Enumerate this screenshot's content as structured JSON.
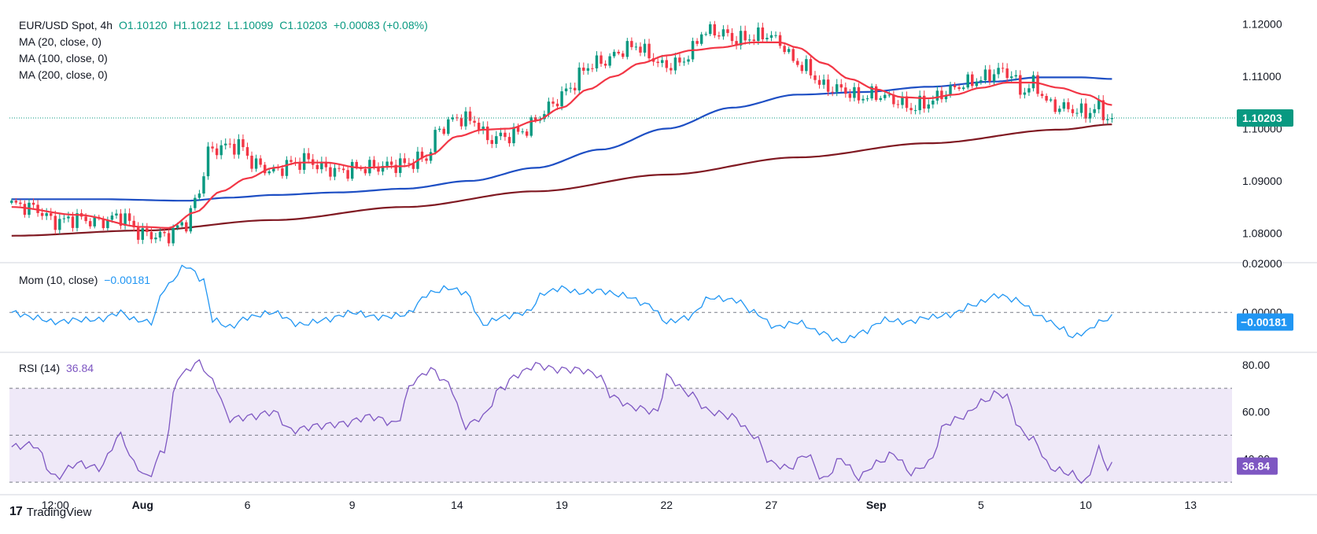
{
  "legend": {
    "symbol": "EUR/USD Spot, 4h",
    "open": "O1.10120",
    "high": "H1.10212",
    "low": "L1.10099",
    "close": "C1.10203",
    "change": "+0.00083 (+0.08%)",
    "ma20": "MA (20, close, 0)",
    "ma100": "MA (100, close, 0)",
    "ma200": "MA (200, close, 0)",
    "mom_label": "Mom (10, close)",
    "mom_value": "−0.00181",
    "rsi_label": "RSI (14)",
    "rsi_value": "36.84"
  },
  "branding": {
    "name": "TradingView"
  },
  "chart_data": {
    "type": "candlestick",
    "timeframe": "4h",
    "x_ticks": [
      {
        "i": 10,
        "label": "12:00"
      },
      {
        "i": 30,
        "label": "Aug"
      },
      {
        "i": 54,
        "label": "6"
      },
      {
        "i": 78,
        "label": "9"
      },
      {
        "i": 102,
        "label": "14"
      },
      {
        "i": 126,
        "label": "19"
      },
      {
        "i": 150,
        "label": "22"
      },
      {
        "i": 174,
        "label": "27"
      },
      {
        "i": 198,
        "label": "Sep"
      },
      {
        "i": 222,
        "label": "5"
      },
      {
        "i": 246,
        "label": "10"
      },
      {
        "i": 270,
        "label": "13"
      }
    ],
    "bar_count": 280,
    "price_panel": {
      "y_ticks": [
        "1.12000",
        "1.11000",
        "1.10000",
        "1.09000",
        "1.08000"
      ],
      "ylim": [
        1.0745,
        1.1225
      ],
      "last_price_label": "1.10203",
      "last_price": 1.10203,
      "anchors_close": [
        [
          0,
          1.0855
        ],
        [
          5,
          1.0848
        ],
        [
          10,
          1.0822
        ],
        [
          15,
          1.0828
        ],
        [
          20,
          1.0821
        ],
        [
          25,
          1.0832
        ],
        [
          30,
          1.0798
        ],
        [
          35,
          1.0794
        ],
        [
          40,
          1.082
        ],
        [
          43,
          1.088
        ],
        [
          45,
          1.0955
        ],
        [
          48,
          1.0965
        ],
        [
          52,
          1.0968
        ],
        [
          56,
          1.093
        ],
        [
          60,
          1.0918
        ],
        [
          64,
          1.0933
        ],
        [
          68,
          1.094
        ],
        [
          71,
          1.0925
        ],
        [
          75,
          1.0918
        ],
        [
          80,
          1.0925
        ],
        [
          85,
          1.0928
        ],
        [
          90,
          1.0932
        ],
        [
          95,
          1.0945
        ],
        [
          98,
          1.1
        ],
        [
          102,
          1.102
        ],
        [
          106,
          1.1015
        ],
        [
          109,
          1.098
        ],
        [
          113,
          1.0985
        ],
        [
          118,
          1.0998
        ],
        [
          121,
          1.1025
        ],
        [
          125,
          1.1055
        ],
        [
          128,
          1.108
        ],
        [
          132,
          1.112
        ],
        [
          136,
          1.113
        ],
        [
          140,
          1.115
        ],
        [
          143,
          1.116
        ],
        [
          146,
          1.114
        ],
        [
          149,
          1.112
        ],
        [
          153,
          1.1125
        ],
        [
          156,
          1.115
        ],
        [
          158,
          1.1185
        ],
        [
          162,
          1.1185
        ],
        [
          166,
          1.117
        ],
        [
          170,
          1.1175
        ],
        [
          173,
          1.118
        ],
        [
          176,
          1.1165
        ],
        [
          179,
          1.113
        ],
        [
          182,
          1.1115
        ],
        [
          186,
          1.108
        ],
        [
          190,
          1.1075
        ],
        [
          194,
          1.106
        ],
        [
          198,
          1.1065
        ],
        [
          202,
          1.1055
        ],
        [
          206,
          1.104
        ],
        [
          210,
          1.105
        ],
        [
          214,
          1.107
        ],
        [
          218,
          1.1085
        ],
        [
          222,
          1.1095
        ],
        [
          226,
          1.111
        ],
        [
          229,
          1.1105
        ],
        [
          231,
          1.107
        ],
        [
          234,
          1.1085
        ],
        [
          238,
          1.1045
        ],
        [
          242,
          1.1038
        ],
        [
          246,
          1.103
        ],
        [
          249,
          1.104
        ],
        [
          251,
          1.102
        ],
        [
          252,
          1.102
        ]
      ],
      "ma20_anchors": [
        [
          0,
          1.085
        ],
        [
          15,
          1.0835
        ],
        [
          30,
          1.0812
        ],
        [
          36,
          1.081
        ],
        [
          42,
          1.084
        ],
        [
          48,
          1.088
        ],
        [
          54,
          1.0905
        ],
        [
          60,
          1.0925
        ],
        [
          66,
          1.0935
        ],
        [
          72,
          1.0935
        ],
        [
          80,
          1.0925
        ],
        [
          90,
          1.0928
        ],
        [
          96,
          1.095
        ],
        [
          102,
          1.0985
        ],
        [
          108,
          1.0998
        ],
        [
          114,
          1.1
        ],
        [
          120,
          1.1015
        ],
        [
          126,
          1.104
        ],
        [
          132,
          1.1075
        ],
        [
          138,
          1.11
        ],
        [
          144,
          1.1125
        ],
        [
          150,
          1.114
        ],
        [
          156,
          1.115
        ],
        [
          162,
          1.1155
        ],
        [
          170,
          1.1165
        ],
        [
          176,
          1.1165
        ],
        [
          180,
          1.1155
        ],
        [
          186,
          1.1125
        ],
        [
          192,
          1.1095
        ],
        [
          198,
          1.1075
        ],
        [
          204,
          1.106
        ],
        [
          210,
          1.1058
        ],
        [
          216,
          1.1065
        ],
        [
          222,
          1.1078
        ],
        [
          228,
          1.1088
        ],
        [
          234,
          1.1088
        ],
        [
          240,
          1.1078
        ],
        [
          246,
          1.1065
        ],
        [
          252,
          1.1045
        ]
      ],
      "ma100_anchors": [
        [
          0,
          1.0865
        ],
        [
          20,
          1.0865
        ],
        [
          40,
          1.0862
        ],
        [
          50,
          1.0868
        ],
        [
          60,
          1.0873
        ],
        [
          75,
          1.0878
        ],
        [
          90,
          1.0885
        ],
        [
          105,
          1.09
        ],
        [
          120,
          1.0925
        ],
        [
          135,
          1.096
        ],
        [
          150,
          1.1
        ],
        [
          165,
          1.104
        ],
        [
          180,
          1.1065
        ],
        [
          195,
          1.107
        ],
        [
          210,
          1.108
        ],
        [
          225,
          1.109
        ],
        [
          235,
          1.1098
        ],
        [
          245,
          1.1098
        ],
        [
          252,
          1.1095
        ]
      ],
      "ma200_anchors": [
        [
          0,
          1.0795
        ],
        [
          30,
          1.0805
        ],
        [
          60,
          1.0825
        ],
        [
          90,
          1.085
        ],
        [
          120,
          1.088
        ],
        [
          150,
          1.0912
        ],
        [
          180,
          1.0945
        ],
        [
          210,
          1.0972
        ],
        [
          240,
          1.0998
        ],
        [
          252,
          1.1008
        ]
      ]
    },
    "momentum_panel": {
      "name": "Mom (10, close)",
      "y_ticks": [
        "0.02000"
      ],
      "zero_label": "0.00000",
      "last_value_label": "−0.00181",
      "ylim": [
        -0.016,
        0.02
      ],
      "anchors": [
        [
          0,
          0.0
        ],
        [
          5,
          -0.002
        ],
        [
          10,
          -0.004
        ],
        [
          15,
          -0.003
        ],
        [
          20,
          -0.003
        ],
        [
          25,
          0.0
        ],
        [
          28,
          -0.003
        ],
        [
          32,
          -0.004
        ],
        [
          35,
          0.01
        ],
        [
          40,
          0.019
        ],
        [
          44,
          0.013
        ],
        [
          46,
          -0.003
        ],
        [
          50,
          -0.006
        ],
        [
          54,
          -0.002
        ],
        [
          60,
          0.0
        ],
        [
          66,
          -0.005
        ],
        [
          72,
          -0.003
        ],
        [
          78,
          0.0
        ],
        [
          84,
          -0.002
        ],
        [
          90,
          -0.001
        ],
        [
          96,
          0.008
        ],
        [
          100,
          0.01
        ],
        [
          104,
          0.008
        ],
        [
          108,
          -0.005
        ],
        [
          112,
          -0.002
        ],
        [
          118,
          0.0
        ],
        [
          122,
          0.008
        ],
        [
          126,
          0.01
        ],
        [
          130,
          0.008
        ],
        [
          134,
          0.009
        ],
        [
          140,
          0.007
        ],
        [
          146,
          0.003
        ],
        [
          150,
          -0.004
        ],
        [
          155,
          -0.002
        ],
        [
          160,
          0.006
        ],
        [
          166,
          0.005
        ],
        [
          170,
          0.0
        ],
        [
          175,
          -0.006
        ],
        [
          180,
          -0.004
        ],
        [
          185,
          -0.008
        ],
        [
          190,
          -0.012
        ],
        [
          195,
          -0.008
        ],
        [
          200,
          -0.003
        ],
        [
          205,
          -0.004
        ],
        [
          210,
          -0.002
        ],
        [
          215,
          -0.001
        ],
        [
          220,
          0.003
        ],
        [
          226,
          0.007
        ],
        [
          230,
          0.005
        ],
        [
          236,
          -0.002
        ],
        [
          240,
          -0.006
        ],
        [
          243,
          -0.01
        ],
        [
          246,
          -0.008
        ],
        [
          249,
          -0.004
        ],
        [
          252,
          -0.002
        ]
      ]
    },
    "rsi_panel": {
      "name": "RSI (14)",
      "y_ticks": [
        "80.00",
        "60.00",
        "40.00"
      ],
      "last_value_label": "36.84",
      "ylim": [
        25,
        85
      ],
      "band": [
        30,
        70
      ],
      "midline": 50,
      "anchors": [
        [
          0,
          45
        ],
        [
          5,
          46
        ],
        [
          10,
          32
        ],
        [
          15,
          38
        ],
        [
          20,
          36
        ],
        [
          25,
          50
        ],
        [
          28,
          38
        ],
        [
          31,
          32
        ],
        [
          35,
          44
        ],
        [
          38,
          75
        ],
        [
          43,
          81
        ],
        [
          46,
          73
        ],
        [
          50,
          57
        ],
        [
          55,
          58
        ],
        [
          60,
          60
        ],
        [
          64,
          52
        ],
        [
          70,
          54
        ],
        [
          76,
          55
        ],
        [
          82,
          58
        ],
        [
          88,
          55
        ],
        [
          92,
          73
        ],
        [
          96,
          78
        ],
        [
          100,
          72
        ],
        [
          104,
          54
        ],
        [
          108,
          58
        ],
        [
          112,
          70
        ],
        [
          116,
          76
        ],
        [
          120,
          80
        ],
        [
          125,
          78
        ],
        [
          130,
          78
        ],
        [
          134,
          76
        ],
        [
          138,
          66
        ],
        [
          142,
          62
        ],
        [
          148,
          60
        ],
        [
          150,
          75
        ],
        [
          155,
          68
        ],
        [
          160,
          60
        ],
        [
          165,
          58
        ],
        [
          170,
          50
        ],
        [
          174,
          38
        ],
        [
          178,
          36
        ],
        [
          182,
          42
        ],
        [
          186,
          31
        ],
        [
          190,
          40
        ],
        [
          194,
          32
        ],
        [
          198,
          38
        ],
        [
          202,
          42
        ],
        [
          206,
          34
        ],
        [
          210,
          38
        ],
        [
          214,
          55
        ],
        [
          218,
          58
        ],
        [
          222,
          64
        ],
        [
          226,
          68
        ],
        [
          228,
          66
        ],
        [
          231,
          52
        ],
        [
          234,
          48
        ],
        [
          238,
          36
        ],
        [
          242,
          34
        ],
        [
          246,
          30
        ],
        [
          249,
          44
        ],
        [
          251,
          36
        ],
        [
          252,
          37
        ]
      ]
    }
  },
  "colors": {
    "up": "#089981",
    "down": "#f23645",
    "ma20": "#f23645",
    "ma100": "#1e4fc4",
    "ma200": "#801922",
    "momentum": "#2196f3",
    "rsi": "#7e57c2",
    "rsi_band": "#efe9f8",
    "mom_badge": "#2196f3",
    "rsi_badge": "#7e57c2",
    "price_badge": "#089981",
    "grid": "#e6e6e6",
    "axis_text": "#131722"
  }
}
